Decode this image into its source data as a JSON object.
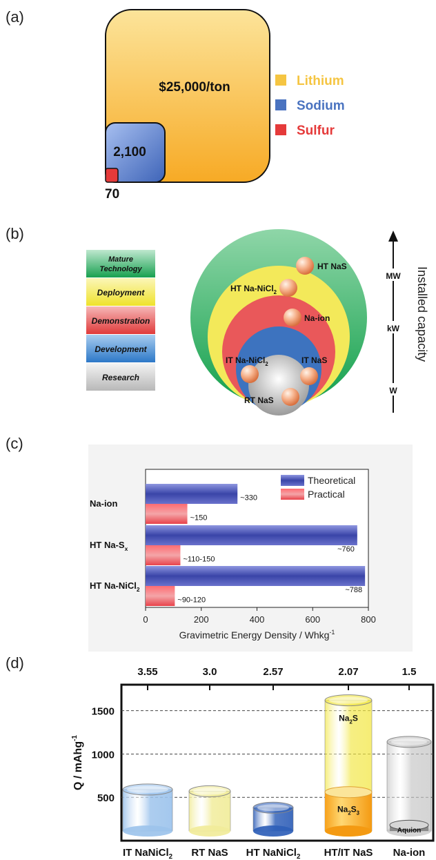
{
  "panels": {
    "a": "(a)",
    "b": "(b)",
    "c": "(c)",
    "d": "(d)"
  },
  "panel_a": {
    "boxes": [
      {
        "label": "$25,000/ton",
        "value": 25000,
        "color": "#f7ba3c"
      },
      {
        "label": "2,100",
        "value": 2100,
        "color": "#4a73c0"
      },
      {
        "label": "70",
        "value": 70,
        "color": "#e53a3a"
      }
    ],
    "legend": [
      {
        "name": "Lithium",
        "color": "#f5c542"
      },
      {
        "name": "Sodium",
        "color": "#4a73c0"
      },
      {
        "name": "Sulfur",
        "color": "#e53a3a"
      }
    ]
  },
  "panel_b": {
    "stages": [
      {
        "label": "Mature Technology",
        "color": "#2eaa60"
      },
      {
        "label": "Deployment",
        "color": "#f2e63a"
      },
      {
        "label": "Demonstration",
        "color": "#e55050"
      },
      {
        "label": "Development",
        "color": "#3f83cc"
      },
      {
        "label": "Research",
        "color": "#cccccc"
      }
    ],
    "technologies": [
      {
        "name": "HT NaS"
      },
      {
        "name": "HT Na-NiCl",
        "sub": "2"
      },
      {
        "name": "Na-ion"
      },
      {
        "name": "IT Na-NiCl",
        "sub": "2"
      },
      {
        "name": "IT NaS"
      },
      {
        "name": "RT NaS"
      }
    ],
    "scale": {
      "title": "Installed capacity",
      "levels": [
        "MW",
        "kW",
        "W"
      ]
    }
  },
  "chart_data": [
    {
      "type": "bar",
      "orientation": "horizontal",
      "categories": [
        "Na-ion",
        "HT Na-Sx",
        "HT Na-NiCl2"
      ],
      "category_labels": [
        {
          "text": "Na-ion",
          "sub": ""
        },
        {
          "text": "HT Na-S",
          "sub": "x"
        },
        {
          "text": "HT Na-NiCl",
          "sub": "2"
        }
      ],
      "series": [
        {
          "name": "Theoretical",
          "values": [
            330,
            760,
            788
          ],
          "labels": [
            "~330",
            "~760",
            "~788"
          ],
          "color": "#3a45a8"
        },
        {
          "name": "Practical",
          "values": [
            150,
            125,
            105
          ],
          "labels": [
            "~150",
            "~110-150",
            "~90-120"
          ],
          "color": "#e8434b"
        }
      ],
      "xlabel": "Gravimetric Energy Density / Whkg",
      "xlabel_sup": "-1",
      "xlim": [
        0,
        800
      ],
      "xticks": [
        0,
        200,
        400,
        600,
        800
      ],
      "legend": "top-right"
    },
    {
      "type": "bar",
      "categories": [
        "IT NaNiCl2",
        "RT NaS",
        "HT NaNiCl2",
        "HT/IT NaS",
        "Na-ion"
      ],
      "category_labels": [
        {
          "text": "IT NaNiCl",
          "sub": "2"
        },
        {
          "text": "RT NaS",
          "sub": ""
        },
        {
          "text": "HT NaNiCl",
          "sub": "2"
        },
        {
          "text": "HT/IT NaS",
          "sub": ""
        },
        {
          "text": "Na-ion",
          "sub": ""
        }
      ],
      "voltages": [
        "3.55",
        "3.0",
        "2.57",
        "2.07",
        "1.5"
      ],
      "values": [
        590,
        570,
        380,
        1620,
        1140
      ],
      "segment_inner_values": [
        null,
        null,
        null,
        560,
        180
      ],
      "segment_labels": [
        {
          "index": 3,
          "upper": {
            "text": "Na",
            "sub": "2",
            "tail": "S"
          },
          "lower": {
            "text": "Na",
            "sub": "2",
            "tail": "S",
            "sub2": "3"
          }
        },
        {
          "index": 4,
          "lower_only": "Aquion"
        }
      ],
      "colors": [
        "#9cc3ec",
        "#f1ec9a",
        "#2f5fb8",
        "#f2e640",
        "#c4c4c4"
      ],
      "ylabel": "Q / mAhg",
      "ylabel_sup": "-1",
      "ylim": [
        0,
        1800
      ],
      "yticks": [
        500,
        1000,
        1500
      ],
      "grid": "dashed horizontal"
    }
  ]
}
